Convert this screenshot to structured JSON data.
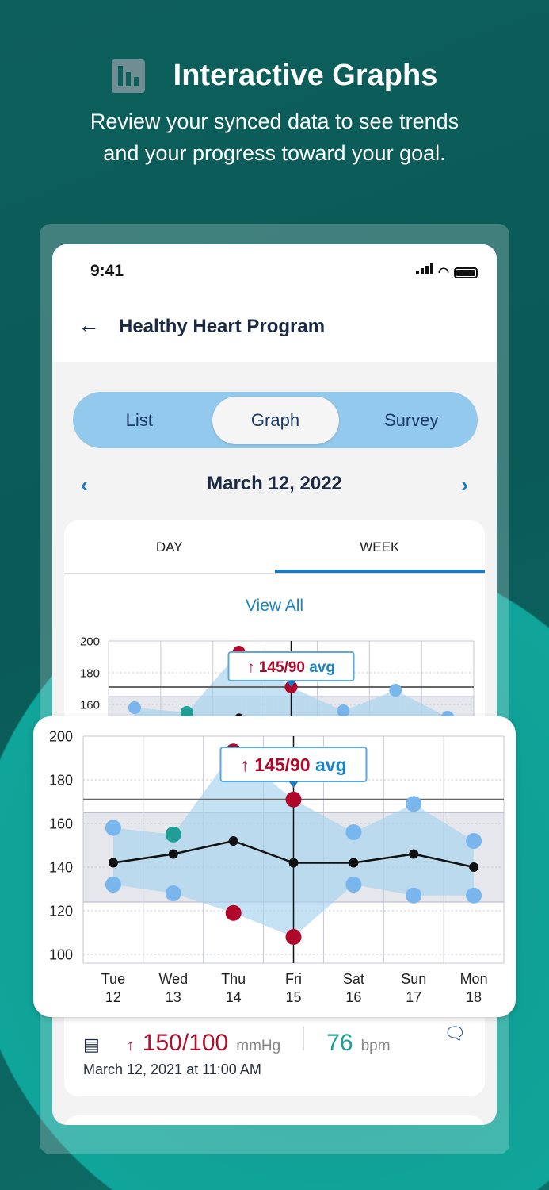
{
  "promo": {
    "title": "Interactive Graphs",
    "subtitle_line1": "Review your synced data to see trends",
    "subtitle_line2": "and your progress toward your goal.",
    "icon": "bar-chart-icon"
  },
  "status_bar": {
    "time": "9:41"
  },
  "header": {
    "title": "Healthy Heart Program",
    "back_icon": "arrow-left-icon"
  },
  "segments": [
    "List",
    "Graph",
    "Survey"
  ],
  "selected_segment": "Graph",
  "date_nav": {
    "date": "March 12, 2022",
    "prev": "‹",
    "next": "›"
  },
  "range_tabs": [
    "DAY",
    "WEEK"
  ],
  "selected_range_tab": "WEEK",
  "view_all": "View All",
  "tooltip": {
    "arrow": "↑",
    "value": "145/90",
    "suffix": "avg"
  },
  "reading": {
    "arrow": "↑",
    "bp": "150/100",
    "bp_unit": "mmHg",
    "hr": "76",
    "hr_unit": "bpm",
    "timestamp": "March 12, 2021 at 11:00 AM"
  },
  "colors": {
    "red": "#b0082a",
    "blue_point": "#79b6ee",
    "teal": "#1f9e95",
    "band": "#e6e7ed",
    "range_fill": "#a6d2ee"
  },
  "chart_data": {
    "type": "line",
    "categories": [
      "Tue 12",
      "Wed 13",
      "Thu 14",
      "Fri 15",
      "Sat 16",
      "Sun 17",
      "Mon 18"
    ],
    "day_labels": [
      [
        "Tue",
        "12"
      ],
      [
        "Wed",
        "13"
      ],
      [
        "Thu",
        "14"
      ],
      [
        "Fri",
        "15"
      ],
      [
        "Sat",
        "16"
      ],
      [
        "Sun",
        "17"
      ],
      [
        "Mon",
        "18"
      ]
    ],
    "yticks": [
      100,
      120,
      140,
      160,
      180,
      200
    ],
    "ylim": [
      96,
      200
    ],
    "grid": true,
    "series": [
      {
        "role": "high",
        "values": [
          158,
          155,
          193,
          171,
          156,
          169,
          152
        ],
        "point_status": [
          "normal",
          "teal",
          "high",
          "high",
          "normal",
          "normal",
          "normal"
        ]
      },
      {
        "role": "low",
        "values": [
          132,
          128,
          119,
          108,
          132,
          127,
          127
        ],
        "point_status": [
          "normal",
          "normal",
          "high",
          "high",
          "normal",
          "normal",
          "normal"
        ]
      },
      {
        "role": "average",
        "values": [
          142,
          146,
          152,
          142,
          142,
          146,
          140
        ]
      }
    ],
    "target_range": [
      124,
      165
    ],
    "threshold": 171,
    "selected_category": "Fri 15"
  }
}
